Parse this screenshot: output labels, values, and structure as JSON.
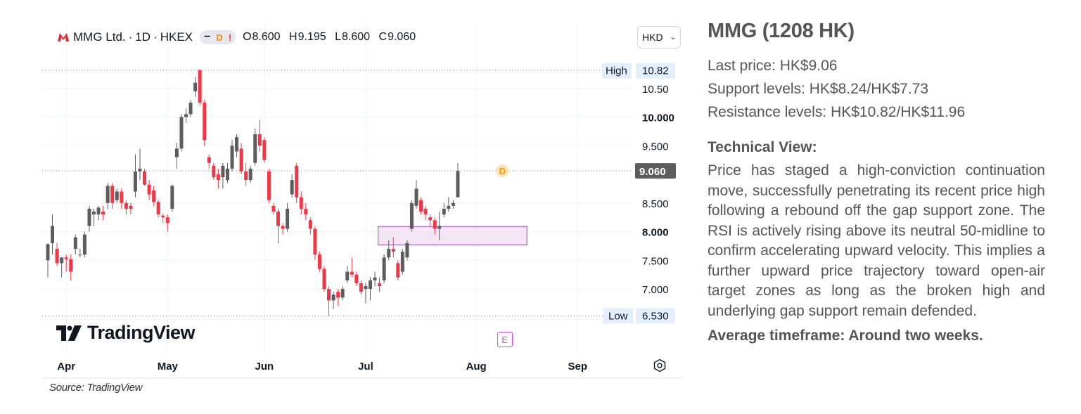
{
  "chart_header": {
    "symbol_label": "MMG Ltd.",
    "interval": "1D",
    "exchange": "HKEX",
    "separator": "·",
    "badge_dash": "−",
    "badge_dividend": "D",
    "badge_alert": "!",
    "ohlc": {
      "open_key": "O",
      "open": "8.600",
      "high_key": "H",
      "high": "9.195",
      "low_key": "L",
      "low": "8.600",
      "close_key": "C",
      "close": "9.060"
    },
    "currency_button": "HKD"
  },
  "branding": {
    "tradingview_wordmark": "TradingView"
  },
  "earnings_marker": "E",
  "dividend_marker": "D",
  "source": "Source: TradingView",
  "colors": {
    "up": "#5d5d5d",
    "down": "#f23645",
    "zone_fill": "#f3e5f5",
    "zone_border": "#ab47bc",
    "marker": "#ff9800"
  },
  "chart_data": {
    "type": "candlestick",
    "title": "MMG Ltd. · 1D · HKEX",
    "y_axis": {
      "ticks": [
        "7.000",
        "7.500",
        "8.000",
        "8.500",
        "9.500",
        "10.000",
        "10.50"
      ],
      "range": [
        6.13,
        11.16
      ],
      "high_label": "High",
      "high_value": "10.82",
      "high": 10.82,
      "low_label": "Low",
      "low_value": "6.530",
      "low": 6.53,
      "last_value": "9.060",
      "last": 9.06
    },
    "x_axis": {
      "ticks": [
        "Apr",
        "May",
        "Jun",
        "Jul",
        "Aug",
        "Sep"
      ]
    },
    "gap_support_zone": {
      "low": 7.77,
      "high": 8.09
    },
    "candles": [
      {
        "o": 7.5,
        "h": 7.8,
        "l": 7.2,
        "c": 7.78
      },
      {
        "o": 7.8,
        "h": 8.3,
        "l": 7.6,
        "c": 8.1
      },
      {
        "o": 7.7,
        "h": 7.8,
        "l": 7.4,
        "c": 7.45
      },
      {
        "o": 7.45,
        "h": 7.55,
        "l": 7.2,
        "c": 7.55
      },
      {
        "o": 7.55,
        "h": 7.6,
        "l": 7.3,
        "c": 7.52
      },
      {
        "o": 7.52,
        "h": 7.6,
        "l": 7.15,
        "c": 7.3
      },
      {
        "o": 7.7,
        "h": 7.95,
        "l": 7.6,
        "c": 7.9
      },
      {
        "o": 7.6,
        "h": 7.7,
        "l": 7.55,
        "c": 7.6
      },
      {
        "o": 7.6,
        "h": 8.0,
        "l": 7.55,
        "c": 7.95
      },
      {
        "o": 8.1,
        "h": 8.45,
        "l": 8.0,
        "c": 8.4
      },
      {
        "o": 8.3,
        "h": 8.4,
        "l": 8.1,
        "c": 8.35
      },
      {
        "o": 8.3,
        "h": 8.45,
        "l": 8.2,
        "c": 8.42
      },
      {
        "o": 8.35,
        "h": 8.45,
        "l": 8.2,
        "c": 8.3
      },
      {
        "o": 8.5,
        "h": 8.85,
        "l": 8.4,
        "c": 8.8
      },
      {
        "o": 8.8,
        "h": 8.85,
        "l": 8.4,
        "c": 8.5
      },
      {
        "o": 8.55,
        "h": 8.75,
        "l": 8.5,
        "c": 8.7
      },
      {
        "o": 8.7,
        "h": 8.75,
        "l": 8.4,
        "c": 8.5
      },
      {
        "o": 8.5,
        "h": 8.55,
        "l": 8.3,
        "c": 8.4
      },
      {
        "o": 8.45,
        "h": 8.5,
        "l": 8.3,
        "c": 8.4
      },
      {
        "o": 8.7,
        "h": 9.35,
        "l": 8.6,
        "c": 9.05
      },
      {
        "o": 9.05,
        "h": 9.45,
        "l": 8.9,
        "c": 9.1
      },
      {
        "o": 9.05,
        "h": 9.1,
        "l": 8.8,
        "c": 8.82
      },
      {
        "o": 8.82,
        "h": 8.9,
        "l": 8.55,
        "c": 8.65
      },
      {
        "o": 8.72,
        "h": 8.8,
        "l": 8.45,
        "c": 8.52
      },
      {
        "o": 8.52,
        "h": 8.55,
        "l": 8.25,
        "c": 8.3
      },
      {
        "o": 8.28,
        "h": 8.32,
        "l": 8.15,
        "c": 8.25
      },
      {
        "o": 8.25,
        "h": 8.3,
        "l": 8.0,
        "c": 8.15
      },
      {
        "o": 8.4,
        "h": 8.82,
        "l": 8.35,
        "c": 8.8
      },
      {
        "o": 9.3,
        "h": 9.55,
        "l": 9.1,
        "c": 9.45
      },
      {
        "o": 9.45,
        "h": 10.05,
        "l": 9.4,
        "c": 10.0
      },
      {
        "o": 10.0,
        "h": 10.15,
        "l": 9.9,
        "c": 10.05
      },
      {
        "o": 10.05,
        "h": 10.3,
        "l": 10.0,
        "c": 10.25
      },
      {
        "o": 10.45,
        "h": 10.7,
        "l": 10.35,
        "c": 10.6
      },
      {
        "o": 10.82,
        "h": 10.82,
        "l": 10.2,
        "c": 10.25
      },
      {
        "o": 10.25,
        "h": 10.3,
        "l": 9.5,
        "c": 9.6
      },
      {
        "o": 9.3,
        "h": 9.35,
        "l": 9.1,
        "c": 9.2
      },
      {
        "o": 9.15,
        "h": 9.2,
        "l": 8.9,
        "c": 8.95
      },
      {
        "o": 9.0,
        "h": 9.1,
        "l": 8.75,
        "c": 8.9
      },
      {
        "o": 8.95,
        "h": 9.2,
        "l": 8.75,
        "c": 9.15
      },
      {
        "o": 8.9,
        "h": 9.2,
        "l": 8.85,
        "c": 9.1
      },
      {
        "o": 9.1,
        "h": 9.6,
        "l": 9.05,
        "c": 9.5
      },
      {
        "o": 9.4,
        "h": 9.7,
        "l": 9.3,
        "c": 9.65
      },
      {
        "o": 9.45,
        "h": 9.55,
        "l": 9.0,
        "c": 9.05
      },
      {
        "o": 9.05,
        "h": 9.2,
        "l": 8.8,
        "c": 8.9
      },
      {
        "o": 8.9,
        "h": 9.15,
        "l": 8.85,
        "c": 9.1
      },
      {
        "o": 9.2,
        "h": 9.8,
        "l": 9.15,
        "c": 9.7
      },
      {
        "o": 9.7,
        "h": 9.95,
        "l": 9.4,
        "c": 9.5
      },
      {
        "o": 9.6,
        "h": 9.65,
        "l": 9.2,
        "c": 9.25
      },
      {
        "o": 9.05,
        "h": 9.1,
        "l": 8.5,
        "c": 8.55
      },
      {
        "o": 8.45,
        "h": 8.5,
        "l": 8.3,
        "c": 8.35
      },
      {
        "o": 8.35,
        "h": 8.4,
        "l": 7.8,
        "c": 8.1
      },
      {
        "o": 8.1,
        "h": 8.15,
        "l": 7.95,
        "c": 8.05
      },
      {
        "o": 8.05,
        "h": 8.5,
        "l": 8.0,
        "c": 8.4
      },
      {
        "o": 8.65,
        "h": 9.0,
        "l": 8.6,
        "c": 8.9
      },
      {
        "o": 9.15,
        "h": 9.2,
        "l": 8.5,
        "c": 8.6
      },
      {
        "o": 8.6,
        "h": 8.7,
        "l": 8.3,
        "c": 8.4
      },
      {
        "o": 8.4,
        "h": 8.5,
        "l": 8.2,
        "c": 8.3
      },
      {
        "o": 8.2,
        "h": 8.25,
        "l": 7.95,
        "c": 8.05
      },
      {
        "o": 8.05,
        "h": 8.1,
        "l": 7.5,
        "c": 7.6
      },
      {
        "o": 7.6,
        "h": 7.65,
        "l": 7.3,
        "c": 7.35
      },
      {
        "o": 7.35,
        "h": 7.4,
        "l": 6.95,
        "c": 7.0
      },
      {
        "o": 7.0,
        "h": 7.05,
        "l": 6.53,
        "c": 6.8
      },
      {
        "o": 6.8,
        "h": 6.95,
        "l": 6.65,
        "c": 6.9
      },
      {
        "o": 6.95,
        "h": 7.0,
        "l": 6.7,
        "c": 6.85
      },
      {
        "o": 6.85,
        "h": 7.05,
        "l": 6.8,
        "c": 7.0
      },
      {
        "o": 7.15,
        "h": 7.4,
        "l": 7.1,
        "c": 7.3
      },
      {
        "o": 7.3,
        "h": 7.55,
        "l": 7.2,
        "c": 7.25
      },
      {
        "o": 7.25,
        "h": 7.3,
        "l": 7.05,
        "c": 7.1
      },
      {
        "o": 7.1,
        "h": 7.15,
        "l": 6.9,
        "c": 6.95
      },
      {
        "o": 7.0,
        "h": 7.1,
        "l": 6.75,
        "c": 7.05
      },
      {
        "o": 7.0,
        "h": 7.2,
        "l": 6.8,
        "c": 7.15
      },
      {
        "o": 7.15,
        "h": 7.3,
        "l": 7.05,
        "c": 7.2
      },
      {
        "o": 7.1,
        "h": 7.2,
        "l": 6.95,
        "c": 7.05
      },
      {
        "o": 7.15,
        "h": 7.6,
        "l": 7.1,
        "c": 7.55
      },
      {
        "o": 7.55,
        "h": 7.85,
        "l": 7.5,
        "c": 7.7
      },
      {
        "o": 7.7,
        "h": 7.9,
        "l": 7.55,
        "c": 7.65
      },
      {
        "o": 7.45,
        "h": 7.5,
        "l": 7.15,
        "c": 7.2
      },
      {
        "o": 7.3,
        "h": 7.7,
        "l": 7.25,
        "c": 7.65
      },
      {
        "o": 7.55,
        "h": 7.85,
        "l": 7.5,
        "c": 7.8
      },
      {
        "o": 8.05,
        "h": 8.55,
        "l": 8.0,
        "c": 8.5
      },
      {
        "o": 8.45,
        "h": 8.9,
        "l": 8.4,
        "c": 8.75
      },
      {
        "o": 8.55,
        "h": 8.6,
        "l": 8.3,
        "c": 8.35
      },
      {
        "o": 8.4,
        "h": 8.45,
        "l": 8.2,
        "c": 8.3
      },
      {
        "o": 8.25,
        "h": 8.3,
        "l": 8.1,
        "c": 8.2
      },
      {
        "o": 8.2,
        "h": 8.25,
        "l": 7.95,
        "c": 8.05
      },
      {
        "o": 8.05,
        "h": 8.35,
        "l": 7.85,
        "c": 8.1
      },
      {
        "o": 8.3,
        "h": 8.5,
        "l": 8.25,
        "c": 8.4
      },
      {
        "o": 8.4,
        "h": 8.6,
        "l": 8.35,
        "c": 8.45
      },
      {
        "o": 8.45,
        "h": 8.55,
        "l": 8.4,
        "c": 8.5
      },
      {
        "o": 8.6,
        "h": 9.195,
        "l": 8.6,
        "c": 9.06
      }
    ],
    "marker_positions": {
      "earnings_index": 94,
      "dividend_index": 95
    }
  },
  "sidebar": {
    "title": "MMG (1208 HK)",
    "last_price": "Last price: HK$9.06",
    "support_levels": "Support levels: HK$8.24/HK$7.73",
    "resistance_levels": "Resistance levels: HK$10.82/HK$11.96",
    "technical_view_heading": "Technical View:",
    "technical_view_text": "Price has staged a high-conviction continuation move, successfully penetrating its recent price high following a rebound off the gap support zone. The RSI is actively rising above its neutral 50-midline to confirm accelerating upward velocity. This implies a further upward price trajectory toward open-air target zones as long as the broken high and underlying gap support remain defended.",
    "average_timeframe": "Average timeframe: Around two weeks."
  }
}
